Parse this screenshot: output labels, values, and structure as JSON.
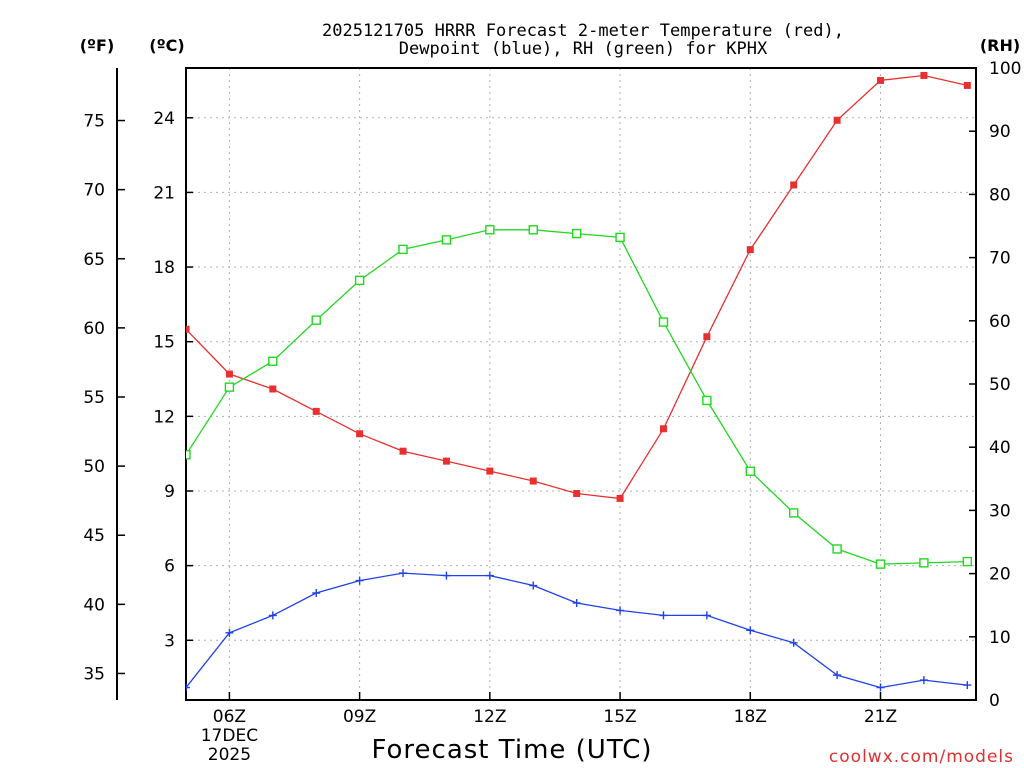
{
  "chart_data": {
    "type": "line",
    "title_line1": "2025121705 HRRR Forecast 2-meter Temperature (red),",
    "title_line2": "Dewpoint (blue), RH (green) for KPHX",
    "xlabel": "Forecast Time (UTC)",
    "x_hours": [
      5,
      6,
      7,
      8,
      9,
      10,
      11,
      12,
      13,
      14,
      15,
      16,
      17,
      18,
      19,
      20,
      21,
      22,
      23
    ],
    "x_range": [
      5,
      23.2
    ],
    "x_ticks": [
      {
        "hour": 6,
        "label": "06Z",
        "sub1": "17DEC",
        "sub2": "2025"
      },
      {
        "hour": 9,
        "label": "09Z"
      },
      {
        "hour": 12,
        "label": "12Z"
      },
      {
        "hour": 15,
        "label": "15Z"
      },
      {
        "hour": 18,
        "label": "18Z"
      },
      {
        "hour": 21,
        "label": "21Z"
      }
    ],
    "axes": {
      "fahrenheit": {
        "label": "(ºF)",
        "ticks": [
          "35",
          "40",
          "45",
          "50",
          "55",
          "60",
          "65",
          "70",
          "75"
        ]
      },
      "celsius": {
        "label": "(ºC)",
        "ylim": [
          0.6,
          26
        ],
        "ticks": [
          "3",
          "6",
          "9",
          "12",
          "15",
          "18",
          "21",
          "24"
        ]
      },
      "rh": {
        "label": "(RH)",
        "ylim": [
          0,
          100
        ],
        "ticks": [
          "0",
          "10",
          "20",
          "30",
          "40",
          "50",
          "60",
          "70",
          "80",
          "90",
          "100"
        ]
      }
    },
    "series": [
      {
        "name": "2-meter Temperature",
        "unit": "C",
        "color": "#e83030",
        "marker": "filled-square",
        "values": [
          15.5,
          13.7,
          13.1,
          12.2,
          11.3,
          10.6,
          10.2,
          9.8,
          9.4,
          8.9,
          8.7,
          11.5,
          15.2,
          18.7,
          21.3,
          23.9,
          25.5,
          25.7,
          25.3
        ]
      },
      {
        "name": "Dewpoint",
        "unit": "C",
        "color": "#2040e8",
        "marker": "plus",
        "values": [
          1.1,
          3.3,
          4.0,
          4.9,
          5.4,
          5.7,
          5.6,
          5.6,
          5.2,
          4.5,
          4.2,
          4.0,
          4.0,
          3.4,
          2.9,
          1.6,
          1.1,
          1.4,
          1.2
        ]
      },
      {
        "name": "RH",
        "unit": "%",
        "color": "#20d820",
        "marker": "open-square",
        "values": [
          38.8,
          49.5,
          53.6,
          60.1,
          66.4,
          71.3,
          72.8,
          74.4,
          74.4,
          73.8,
          73.2,
          59.8,
          47.4,
          36.2,
          29.6,
          23.9,
          21.5,
          21.7,
          21.9
        ]
      }
    ]
  },
  "credit": "coolwx.com/models"
}
